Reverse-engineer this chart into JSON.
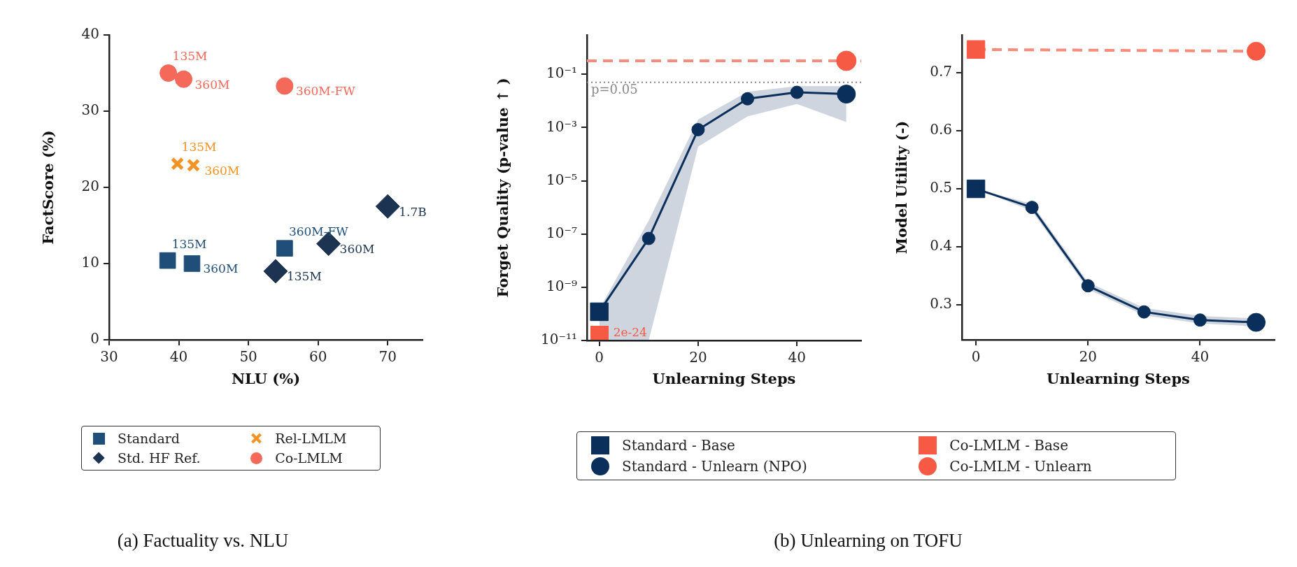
{
  "chart_data": [
    {
      "type": "scatter",
      "xlabel": "NLU (%)",
      "ylabel": "FactScore (%)",
      "xlim": [
        30,
        75
      ],
      "xticks": [
        30,
        40,
        50,
        60,
        70
      ],
      "ylim": [
        0,
        40
      ],
      "yticks": [
        0,
        10,
        20,
        30,
        40
      ],
      "legend": "bottom",
      "series": [
        {
          "name": "Standard",
          "color": "#1f4e79",
          "marker": "square",
          "x": [
            38.4,
            41.9,
            55.2
          ],
          "values": [
            10.4,
            10.0,
            12.0
          ]
        },
        {
          "name": "Std. HF Ref.",
          "color": "#1c3352",
          "marker": "diamond",
          "x": [
            53.9,
            61.5,
            70.0
          ],
          "values": [
            9.0,
            12.6,
            17.5
          ]
        },
        {
          "name": "Rel-LMLM",
          "color": "#f39325",
          "marker": "cross",
          "x": [
            39.8,
            42.1
          ],
          "values": [
            23.1,
            22.9
          ]
        },
        {
          "name": "Co-LMLM",
          "color": "#f4695a",
          "marker": "circle",
          "x": [
            38.5,
            40.7,
            55.2
          ],
          "values": [
            35.0,
            34.2,
            33.3
          ]
        }
      ],
      "annotations": [
        {
          "text": "135M",
          "x": 38.4,
          "y": 10.4
        },
        {
          "text": "360M",
          "x": 41.9,
          "y": 10.0
        },
        {
          "text": "360M-FW",
          "x": 55.2,
          "y": 12.0
        },
        {
          "text": "135M",
          "x": 53.9,
          "y": 9.0
        },
        {
          "text": "360M",
          "x": 61.5,
          "y": 12.6
        },
        {
          "text": "1.7B",
          "x": 70.0,
          "y": 17.5
        },
        {
          "text": "135M",
          "x": 39.8,
          "y": 23.1
        },
        {
          "text": "360M",
          "x": 42.1,
          "y": 22.9
        },
        {
          "text": "135M",
          "x": 38.5,
          "y": 35.0
        },
        {
          "text": "360M",
          "x": 40.7,
          "y": 34.2
        },
        {
          "text": "360M-FW",
          "x": 55.2,
          "y": 33.3
        },
        "(a) Factuality vs. NLU"
      ]
    },
    {
      "type": "line",
      "log": true,
      "xlabel": "Unlearning Steps",
      "ylabel": "Forget Quality (p-value ↑ )",
      "xlim": [
        -2.5,
        53
      ],
      "xticks": [
        0,
        20,
        40
      ],
      "ylim": [
        1e-11,
        3
      ],
      "yticks": [
        {
          "value": 1e-11,
          "label": "10⁻¹¹"
        },
        {
          "value": 1e-09,
          "label": "10⁻⁹"
        },
        {
          "value": 1e-07,
          "label": "10⁻⁷"
        },
        {
          "value": 1e-05,
          "label": "10⁻⁵"
        },
        {
          "value": 0.001,
          "label": "10⁻³"
        },
        {
          "value": 0.1,
          "label": "10⁻¹"
        }
      ],
      "series": [
        {
          "color": "#0b2f5b",
          "type": "scatter",
          "marker": "square",
          "x": [
            0
          ],
          "values": [
            1.2e-10
          ]
        },
        {
          "color": "#0b2f5b",
          "marker": "circle",
          "x": [
            0,
            10,
            20,
            30,
            40,
            50
          ],
          "values": [
            1.2e-10,
            6.8e-08,
            0.00083,
            0.012,
            0.021,
            0.018
          ],
          "lower": [
            1e-11,
            1e-11,
            0.00019,
            0.0026,
            0.0077,
            0.0016
          ],
          "upper": [
            1.5e-10,
            3.2e-07,
            0.002,
            0.022,
            0.036,
            0.036
          ]
        },
        {
          "color": "#f65a45",
          "type": "scatter",
          "marker": "circle",
          "x": [
            50
          ],
          "values": [
            0.32
          ]
        }
      ],
      "ref_lines": [
        {
          "axis": "y",
          "value": 0.32,
          "color": "#f58c7f",
          "line_style": "dashed"
        },
        {
          "axis": "y",
          "value": 0.05,
          "label": "p=0.05",
          "color": "#888888",
          "line_style": "dotted"
        }
      ],
      "annotations": [
        {
          "text": "2e-24",
          "x": 0,
          "y": 1e-11
        },
        "(b) Unlearning on TOFU"
      ]
    },
    {
      "type": "line",
      "xlabel": "Unlearning Steps",
      "ylabel": "Model Utility (-)",
      "xlim": [
        -2.5,
        53.3
      ],
      "xticks": [
        0,
        20,
        40
      ],
      "ylim": [
        0.24,
        0.765
      ],
      "yticks": [
        0.3,
        0.4,
        0.5,
        0.6,
        0.7
      ],
      "legend": "bottom",
      "series": [
        {
          "name": "Standard - Base",
          "color": "#0b2f5b",
          "type": "scatter",
          "marker": "square",
          "x": [
            0
          ],
          "values": [
            0.5
          ]
        },
        {
          "name": "Standard - Unlearn (NPO)",
          "color": "#0b2f5b",
          "marker": "circle",
          "x": [
            0,
            10,
            20,
            30,
            40,
            50
          ],
          "values": [
            0.5,
            0.468,
            0.333,
            0.288,
            0.274,
            0.27
          ],
          "lower": [
            0.5,
            0.462,
            0.327,
            0.282,
            0.268,
            0.263
          ],
          "upper": [
            0.5,
            0.474,
            0.339,
            0.295,
            0.281,
            0.277
          ]
        },
        {
          "name": "Co-LMLM - Base",
          "color": "#f65a45",
          "type": "scatter",
          "marker": "square",
          "x": [
            0
          ],
          "values": [
            0.74
          ]
        },
        {
          "name": "Co-LMLM - Unlearn",
          "color": "#f65a45",
          "marker": "circle",
          "line_style": "dashed",
          "x": [
            0,
            50
          ],
          "values": [
            0.74,
            0.737
          ]
        }
      ]
    }
  ]
}
